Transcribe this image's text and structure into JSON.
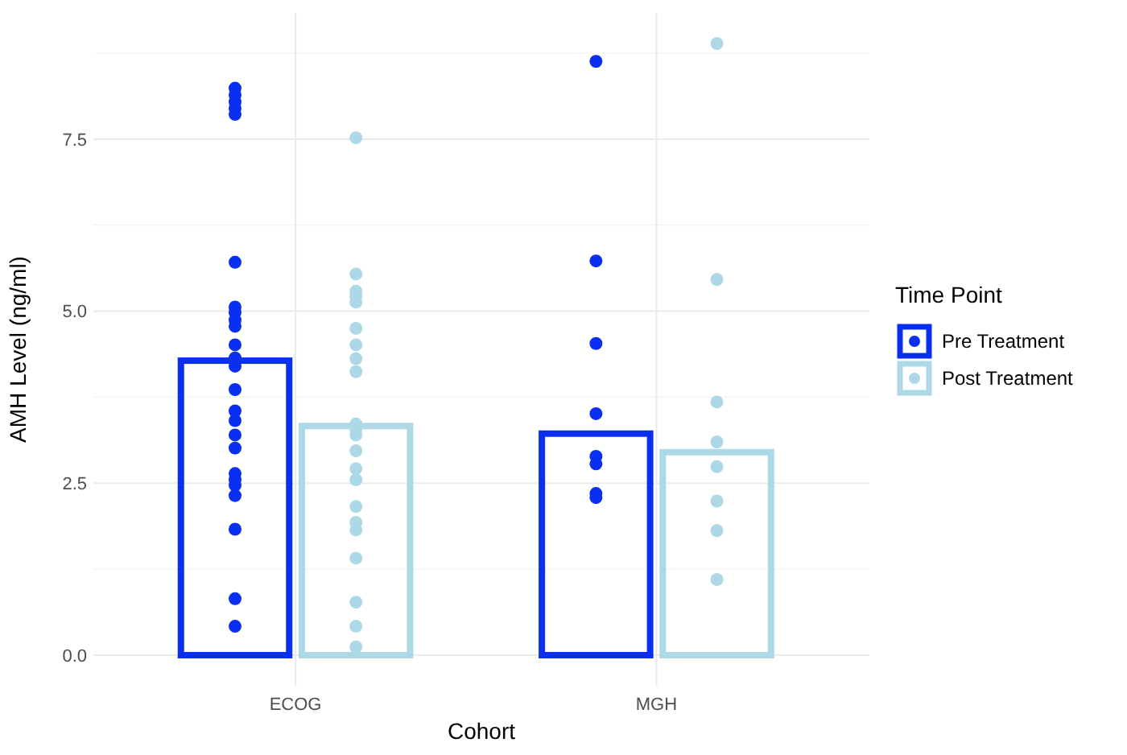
{
  "chart_data": {
    "type": "bar",
    "xlabel": "Cohort",
    "ylabel": "AMH Level (ng/ml)",
    "legend_title": "Time Point",
    "categories": [
      "ECOG",
      "MGH"
    ],
    "series": [
      {
        "name": "Pre Treatment",
        "color": "#0a2ff0",
        "values": [
          4.28,
          3.22
        ]
      },
      {
        "name": "Post Treatment",
        "color": "#add8e6",
        "values": [
          3.33,
          2.95
        ]
      },
      {
        "type": "scatter",
        "color": "#0a2ff0",
        "x": [
          "ECOG",
          "ECOG",
          "ECOG",
          "ECOG",
          "ECOG",
          "ECOG",
          "ECOG",
          "ECOG",
          "ECOG",
          "ECOG",
          "ECOG",
          "ECOG",
          "ECOG",
          "ECOG",
          "ECOG",
          "ECOG",
          "ECOG",
          "ECOG",
          "ECOG",
          "ECOG",
          "ECOG",
          "ECOG",
          "ECOG",
          "ECOG",
          "ECOG",
          "MGH",
          "MGH",
          "MGH",
          "MGH",
          "MGH",
          "MGH",
          "MGH",
          "MGH"
        ],
        "values": [
          8.24,
          8.14,
          8.04,
          7.95,
          7.86,
          5.71,
          5.06,
          4.98,
          4.87,
          4.78,
          4.51,
          4.32,
          4.2,
          3.86,
          3.55,
          3.41,
          3.2,
          3.01,
          2.64,
          2.55,
          2.47,
          2.32,
          1.83,
          0.82,
          0.42,
          8.63,
          5.73,
          4.53,
          3.51,
          2.89,
          2.78,
          2.35,
          2.29
        ]
      },
      {
        "type": "scatter",
        "color": "#add8e6",
        "x": [
          "ECOG",
          "ECOG",
          "ECOG",
          "ECOG",
          "ECOG",
          "ECOG",
          "ECOG",
          "ECOG",
          "ECOG",
          "ECOG",
          "ECOG",
          "ECOG",
          "ECOG",
          "ECOG",
          "ECOG",
          "ECOG",
          "ECOG",
          "ECOG",
          "ECOG",
          "ECOG",
          "ECOG",
          "ECOG",
          "MGH",
          "MGH",
          "MGH",
          "MGH",
          "MGH",
          "MGH",
          "MGH",
          "MGH"
        ],
        "values": [
          7.52,
          5.54,
          5.29,
          5.21,
          5.13,
          4.75,
          4.51,
          4.31,
          4.12,
          3.36,
          3.28,
          3.2,
          2.97,
          2.71,
          2.55,
          2.16,
          1.93,
          1.82,
          1.41,
          0.77,
          0.42,
          0.12,
          8.89,
          5.46,
          3.68,
          3.1,
          2.74,
          2.24,
          1.81,
          1.1
        ]
      }
    ],
    "ylim": [
      -0.445,
      9.335
    ],
    "yticks": [
      {
        "value": 0,
        "label": "0.0"
      },
      {
        "value": 2.5,
        "label": "2.5"
      },
      {
        "value": 5,
        "label": "5.0"
      },
      {
        "value": 7.5,
        "label": "7.5"
      }
    ],
    "grid": true,
    "legend": "right",
    "marker": "circle"
  }
}
